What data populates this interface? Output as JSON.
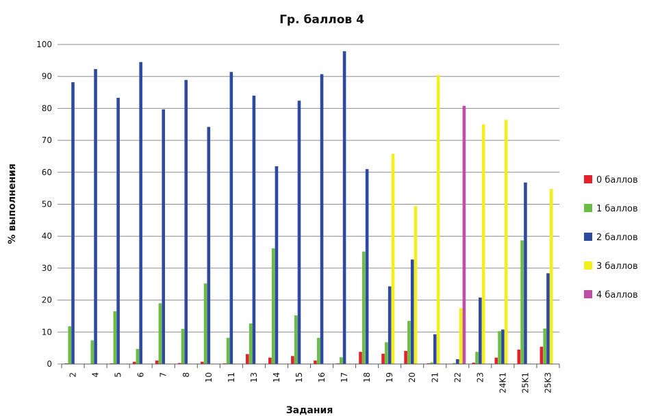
{
  "chart_data": {
    "type": "bar",
    "title": "Гр. баллов 4",
    "xlabel": "Задания",
    "ylabel": "% выполнения",
    "ylim": [
      0,
      100
    ],
    "yticks": [
      0,
      10,
      20,
      30,
      40,
      50,
      60,
      70,
      80,
      90,
      100
    ],
    "grid": true,
    "legend_position": "right",
    "categories": [
      "2",
      "4",
      "5",
      "6",
      "7",
      "8",
      "10",
      "11",
      "13",
      "14",
      "15",
      "16",
      "17",
      "18",
      "19",
      "20",
      "21",
      "22",
      "23",
      "24K1",
      "25K1",
      "25K3"
    ],
    "series": [
      {
        "name": "0 баллов",
        "color": "#e4202a",
        "values": [
          0.2,
          0.1,
          0.2,
          0.7,
          1.1,
          0.3,
          0.7,
          0.2,
          3.1,
          2.0,
          2.5,
          1.1,
          0.2,
          3.8,
          3.2,
          4.1,
          0.2,
          0.1,
          0.4,
          2.0,
          4.5,
          5.4
        ]
      },
      {
        "name": "1 баллов",
        "color": "#6cbd45",
        "values": [
          11.8,
          7.4,
          16.5,
          4.7,
          19.0,
          11.0,
          25.2,
          8.2,
          12.7,
          36.2,
          15.2,
          8.2,
          2.1,
          35.2,
          6.8,
          13.5,
          0.5,
          0.3,
          3.8,
          10.3,
          38.7,
          11.1
        ]
      },
      {
        "name": "2 баллов",
        "color": "#2e4aa0",
        "values": [
          88.2,
          92.3,
          83.3,
          94.5,
          79.7,
          88.9,
          74.2,
          91.4,
          84.0,
          61.9,
          82.4,
          90.7,
          97.9,
          61.0,
          24.3,
          32.7,
          9.3,
          1.5,
          20.8,
          10.8,
          56.8,
          28.4
        ]
      },
      {
        "name": "3 баллов",
        "color": "#f4ee1c",
        "values": [
          null,
          null,
          null,
          null,
          null,
          null,
          null,
          null,
          null,
          null,
          null,
          null,
          null,
          null,
          65.8,
          49.4,
          90.4,
          17.5,
          75.0,
          76.4,
          null,
          54.8
        ]
      },
      {
        "name": "4 баллов",
        "color": "#bd4fa6",
        "values": [
          null,
          null,
          null,
          null,
          null,
          null,
          null,
          null,
          null,
          null,
          null,
          null,
          null,
          null,
          null,
          null,
          null,
          80.8,
          null,
          null,
          null,
          null
        ]
      }
    ]
  }
}
